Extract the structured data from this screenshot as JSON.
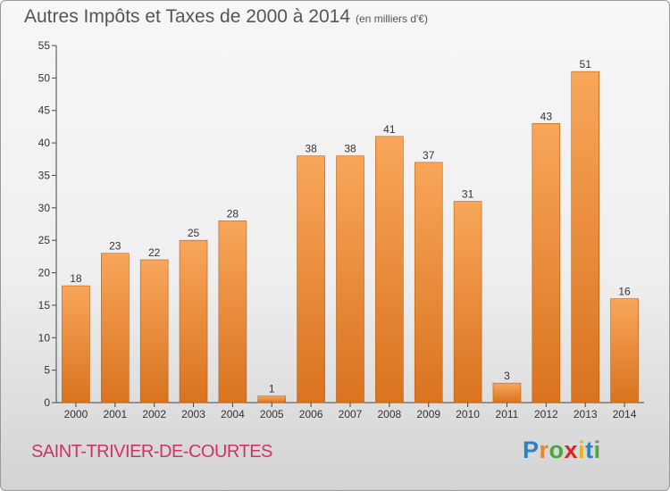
{
  "title": "Autres Impôts et Taxes de 2000 à 2014",
  "title_unit": "(en milliers d'€)",
  "town": "SAINT-TRIVIER-DE-COURTES",
  "logo": {
    "text": "Proxiti",
    "letter_colors": [
      "#2f7fc4",
      "#e8862a",
      "#4aa83a",
      "#d9261c",
      "#f0b400",
      "#2f7fc4",
      "#4aa83a"
    ]
  },
  "colors": {
    "bar_light": "#f8a65a",
    "bar_dark": "#d9731f",
    "bar_edge": "#b85f16"
  },
  "chart_data": {
    "type": "bar",
    "categories": [
      "2000",
      "2001",
      "2002",
      "2003",
      "2004",
      "2005",
      "2006",
      "2007",
      "2008",
      "2009",
      "2010",
      "2011",
      "2012",
      "2013",
      "2014"
    ],
    "values": [
      18,
      23,
      22,
      25,
      28,
      1,
      38,
      38,
      41,
      37,
      31,
      3,
      43,
      51,
      16
    ],
    "ylim": [
      0,
      55
    ],
    "yticks": [
      0,
      5,
      10,
      15,
      20,
      25,
      30,
      35,
      40,
      45,
      50,
      55
    ],
    "grid": false
  }
}
